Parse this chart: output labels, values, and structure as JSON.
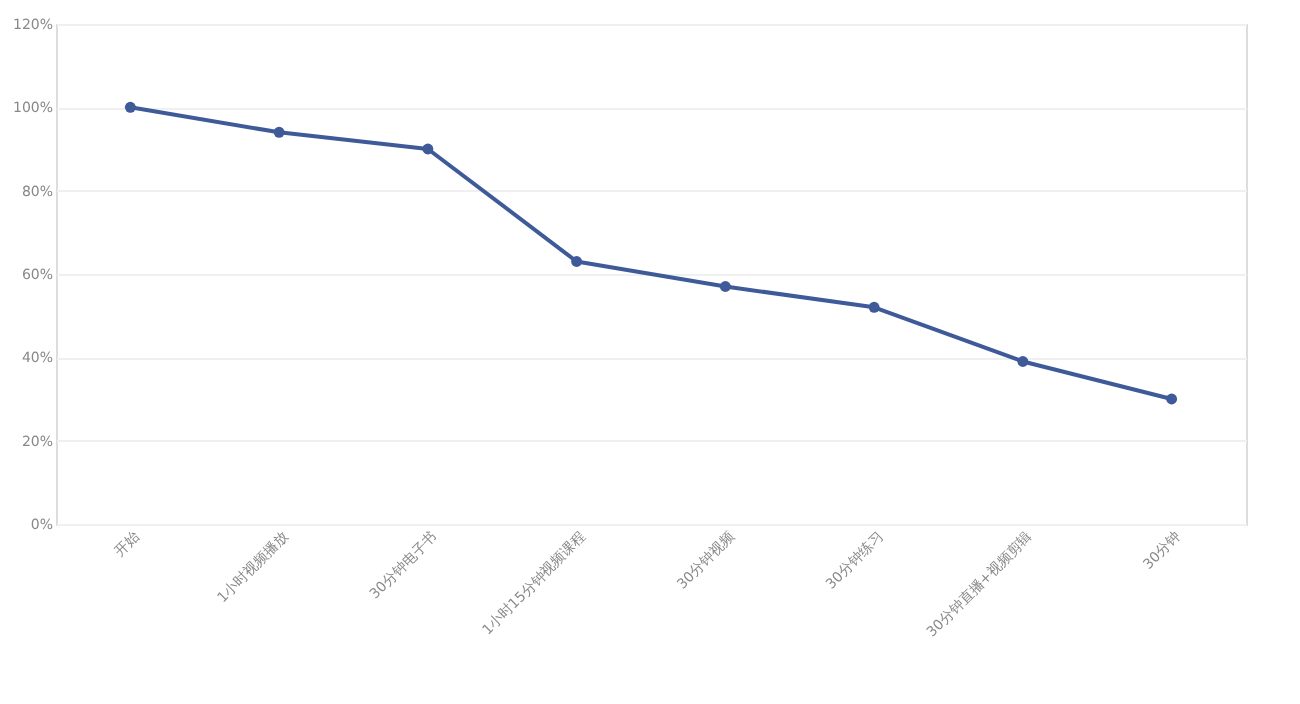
{
  "chart_data": {
    "type": "line",
    "categories": [
      "开始",
      "1小时视频播放",
      "30分钟电子书",
      "1小时15分钟视频课程",
      "30分钟视频",
      "30分钟练习",
      "30分钟直播+视频剪辑",
      "30分钟"
    ],
    "series": [
      {
        "color": "#3e5a99",
        "values": [
          100,
          94,
          90,
          63,
          57,
          52,
          39,
          30
        ]
      }
    ],
    "ylim": [
      0,
      120
    ],
    "yticks": [
      {
        "value": 0,
        "label": "0%"
      },
      {
        "value": 20,
        "label": "20%"
      },
      {
        "value": 40,
        "label": "40%"
      },
      {
        "value": 60,
        "label": "60%"
      },
      {
        "value": 80,
        "label": "80%"
      },
      {
        "value": 100,
        "label": "100%"
      },
      {
        "value": 120,
        "label": "120%"
      }
    ],
    "grid": "y",
    "marker": "circle",
    "line_style": "solid"
  }
}
